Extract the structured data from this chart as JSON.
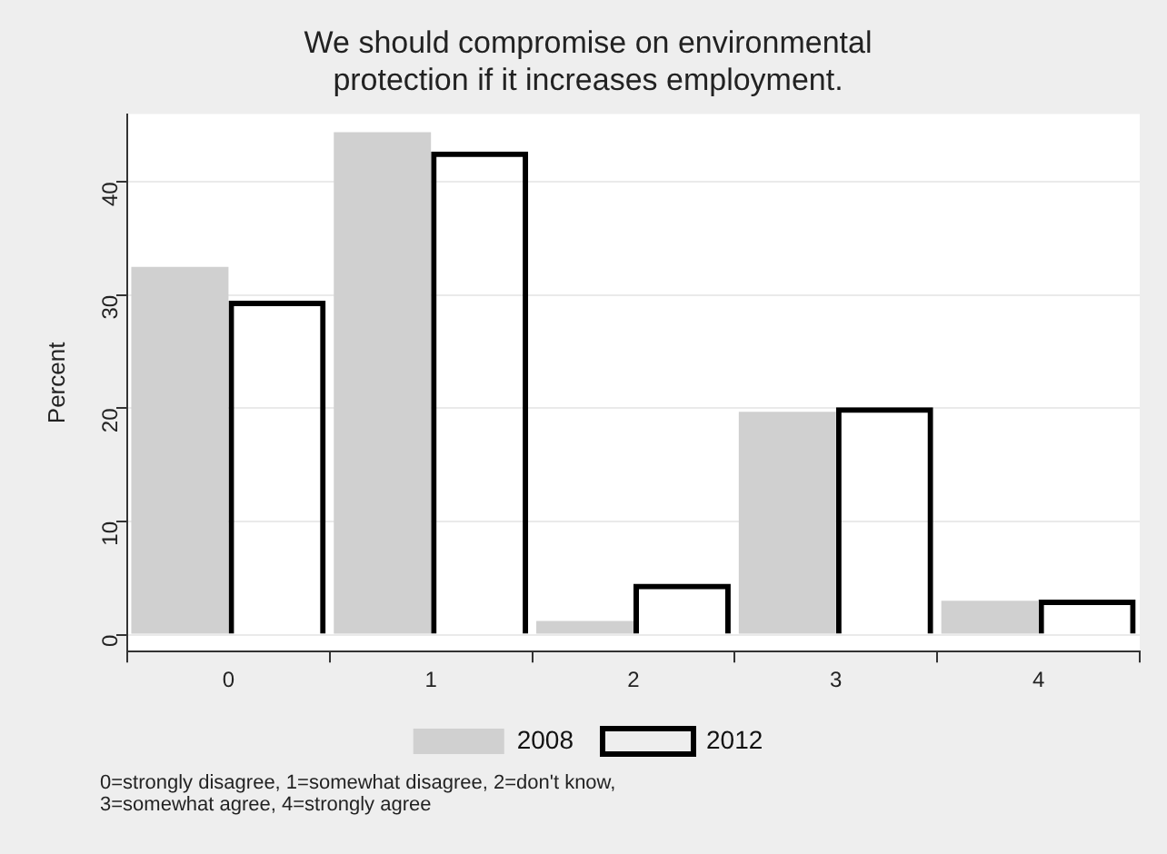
{
  "chart_data": {
    "type": "bar",
    "title": "We should compromise on environmental protection if it increases employment.",
    "ylabel": "Percent",
    "categories": [
      "0",
      "1",
      "2",
      "3",
      "4"
    ],
    "series": [
      {
        "name": "2008",
        "color": "#d0d0d0",
        "values": [
          32.5,
          44.4,
          1.2,
          19.7,
          3.0
        ]
      },
      {
        "name": "2012",
        "color": "#000000",
        "values": [
          29.5,
          42.7,
          4.5,
          20.1,
          3.1
        ]
      }
    ],
    "ylim": [
      -1.5,
      46
    ],
    "yticks": [
      0,
      10,
      20,
      30,
      40
    ],
    "grid": "y",
    "legend": "bottom",
    "annotations": [
      "0=strongly disagree, 1=somewhat disagree, 2=don't know, 3=somewhat agree, 4=strongly agree"
    ]
  }
}
